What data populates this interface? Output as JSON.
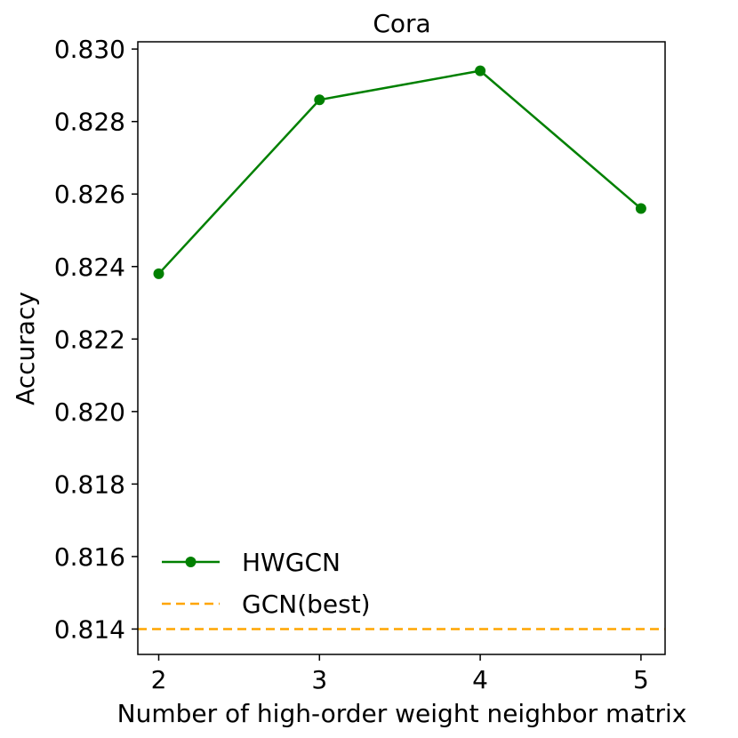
{
  "chart_data": {
    "type": "line",
    "title": "Cora",
    "xlabel": "Number of high-order weight neighbor matrix",
    "ylabel": "Accuracy",
    "x": [
      2,
      3,
      4,
      5
    ],
    "xticks": [
      "2",
      "3",
      "4",
      "5"
    ],
    "xlim": [
      1.87,
      5.15
    ],
    "ylim": [
      0.8133,
      0.8302
    ],
    "yticks": [
      "0.814",
      "0.816",
      "0.818",
      "0.820",
      "0.822",
      "0.824",
      "0.826",
      "0.828",
      "0.830"
    ],
    "series": [
      {
        "name": "HWGCN",
        "values": [
          0.8238,
          0.8286,
          0.8294,
          0.8256
        ],
        "color": "#008000",
        "style": "solid",
        "marker": "circle"
      }
    ],
    "reference_lines": [
      {
        "name": "GCN(best)",
        "value": 0.814,
        "color": "#ffa500",
        "style": "dashed"
      }
    ],
    "legend_position": "lower-left",
    "grid": false
  }
}
